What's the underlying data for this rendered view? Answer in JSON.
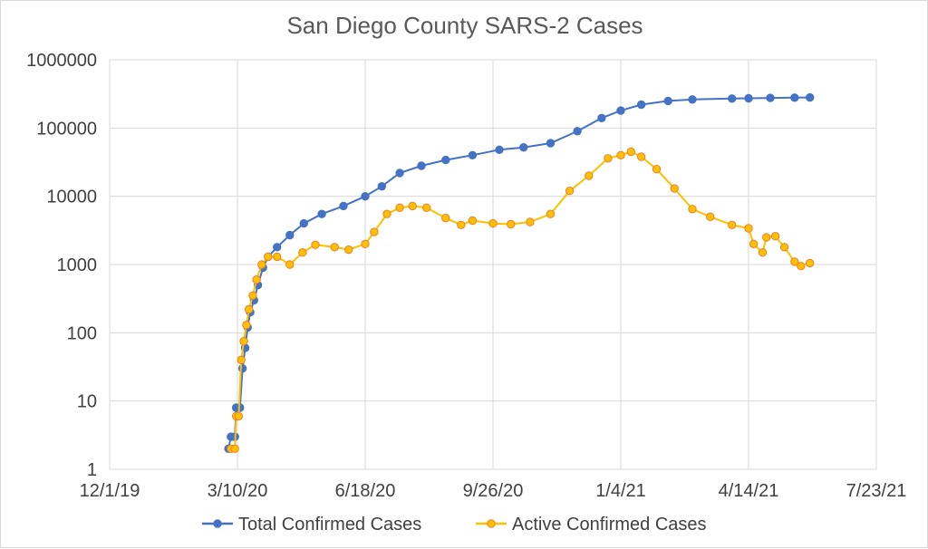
{
  "chart_data": {
    "type": "line",
    "title": "San Diego County SARS-2 Cases",
    "xlabel": "",
    "ylabel": "",
    "y_scale": "log",
    "ylim": [
      1,
      1000000
    ],
    "y_ticks": [
      1,
      10,
      100,
      1000,
      10000,
      100000,
      1000000
    ],
    "y_tick_labels": [
      "1",
      "10",
      "100",
      "1000",
      "10000",
      "100000",
      "1000000"
    ],
    "xlim": [
      "2019-12-01",
      "2021-07-23"
    ],
    "x_ticks": [
      "2019-12-01",
      "2020-03-10",
      "2020-06-18",
      "2020-09-26",
      "2021-01-04",
      "2021-04-14",
      "2021-07-23"
    ],
    "x_tick_labels": [
      "12/1/19",
      "3/10/20",
      "6/18/20",
      "9/26/20",
      "1/4/21",
      "4/14/21",
      "7/23/21"
    ],
    "grid": true,
    "legend_position": "bottom",
    "series": [
      {
        "name": "Total Confirmed Cases",
        "color": "#4472c4",
        "points": [
          [
            "2020-03-03",
            2
          ],
          [
            "2020-03-05",
            3
          ],
          [
            "2020-03-08",
            3
          ],
          [
            "2020-03-09",
            8
          ],
          [
            "2020-03-12",
            8
          ],
          [
            "2020-03-14",
            30
          ],
          [
            "2020-03-16",
            60
          ],
          [
            "2020-03-18",
            120
          ],
          [
            "2020-03-20",
            200
          ],
          [
            "2020-03-23",
            300
          ],
          [
            "2020-03-26",
            500
          ],
          [
            "2020-03-30",
            900
          ],
          [
            "2020-04-03",
            1300
          ],
          [
            "2020-04-10",
            1800
          ],
          [
            "2020-04-20",
            2700
          ],
          [
            "2020-05-01",
            4000
          ],
          [
            "2020-05-15",
            5500
          ],
          [
            "2020-06-01",
            7200
          ],
          [
            "2020-06-18",
            10000
          ],
          [
            "2020-07-01",
            14000
          ],
          [
            "2020-07-15",
            22000
          ],
          [
            "2020-08-01",
            28000
          ],
          [
            "2020-08-20",
            34000
          ],
          [
            "2020-09-10",
            40000
          ],
          [
            "2020-10-01",
            48000
          ],
          [
            "2020-10-20",
            52000
          ],
          [
            "2020-11-10",
            60000
          ],
          [
            "2020-12-01",
            90000
          ],
          [
            "2020-12-20",
            140000
          ],
          [
            "2021-01-04",
            180000
          ],
          [
            "2021-01-20",
            220000
          ],
          [
            "2021-02-10",
            250000
          ],
          [
            "2021-03-01",
            262000
          ],
          [
            "2021-04-01",
            270000
          ],
          [
            "2021-04-14",
            273000
          ],
          [
            "2021-05-01",
            276000
          ],
          [
            "2021-05-20",
            279000
          ],
          [
            "2021-06-01",
            280000
          ]
        ]
      },
      {
        "name": "Active Confirmed Cases",
        "color": "#ffc000",
        "marker_color": "#ed7d31",
        "points": [
          [
            "2020-03-05",
            2
          ],
          [
            "2020-03-08",
            2
          ],
          [
            "2020-03-09",
            6
          ],
          [
            "2020-03-11",
            6
          ],
          [
            "2020-03-13",
            40
          ],
          [
            "2020-03-15",
            75
          ],
          [
            "2020-03-17",
            130
          ],
          [
            "2020-03-19",
            220
          ],
          [
            "2020-03-22",
            350
          ],
          [
            "2020-03-25",
            600
          ],
          [
            "2020-03-29",
            1000
          ],
          [
            "2020-04-03",
            1300
          ],
          [
            "2020-04-10",
            1300
          ],
          [
            "2020-04-20",
            1000
          ],
          [
            "2020-04-30",
            1500
          ],
          [
            "2020-05-10",
            1950
          ],
          [
            "2020-05-25",
            1800
          ],
          [
            "2020-06-05",
            1650
          ],
          [
            "2020-06-18",
            2000
          ],
          [
            "2020-06-25",
            3000
          ],
          [
            "2020-07-05",
            5500
          ],
          [
            "2020-07-15",
            6800
          ],
          [
            "2020-07-25",
            7200
          ],
          [
            "2020-08-05",
            6800
          ],
          [
            "2020-08-20",
            4800
          ],
          [
            "2020-09-01",
            3800
          ],
          [
            "2020-09-10",
            4400
          ],
          [
            "2020-09-26",
            4000
          ],
          [
            "2020-10-10",
            3900
          ],
          [
            "2020-10-25",
            4200
          ],
          [
            "2020-11-10",
            5500
          ],
          [
            "2020-11-25",
            12000
          ],
          [
            "2020-12-10",
            20000
          ],
          [
            "2020-12-25",
            36000
          ],
          [
            "2021-01-04",
            40000
          ],
          [
            "2021-01-12",
            45000
          ],
          [
            "2021-01-20",
            38000
          ],
          [
            "2021-02-01",
            25000
          ],
          [
            "2021-02-15",
            13000
          ],
          [
            "2021-03-01",
            6500
          ],
          [
            "2021-03-15",
            5000
          ],
          [
            "2021-04-01",
            3800
          ],
          [
            "2021-04-14",
            3400
          ],
          [
            "2021-04-18",
            2000
          ],
          [
            "2021-04-25",
            1500
          ],
          [
            "2021-04-28",
            2500
          ],
          [
            "2021-05-05",
            2600
          ],
          [
            "2021-05-12",
            1800
          ],
          [
            "2021-05-20",
            1100
          ],
          [
            "2021-05-25",
            950
          ],
          [
            "2021-06-01",
            1050
          ]
        ]
      }
    ]
  }
}
